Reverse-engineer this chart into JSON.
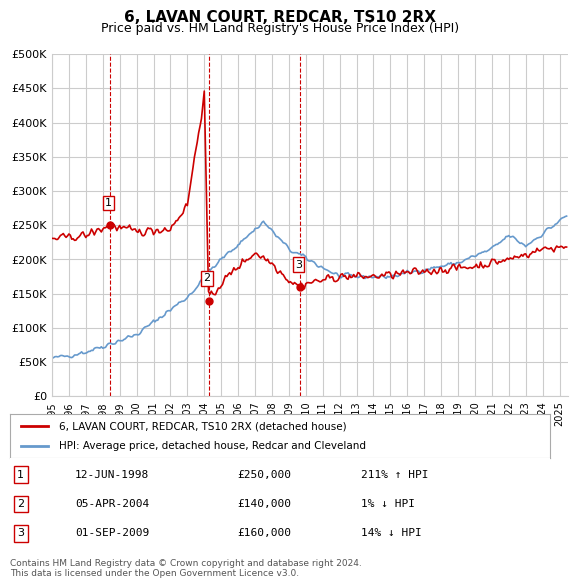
{
  "title": "6, LAVAN COURT, REDCAR, TS10 2RX",
  "subtitle": "Price paid vs. HM Land Registry's House Price Index (HPI)",
  "ylabel_ticks": [
    "£0",
    "£50K",
    "£100K",
    "£150K",
    "£200K",
    "£250K",
    "£300K",
    "£350K",
    "£400K",
    "£450K",
    "£500K"
  ],
  "ylim": [
    0,
    500000
  ],
  "xlim_start": 1995.0,
  "xlim_end": 2025.5,
  "hpi_color": "#6699cc",
  "price_color": "#cc0000",
  "sale_marker_color": "#cc0000",
  "sale_label_color": "#cc0000",
  "vline_color": "#cc0000",
  "bg_color": "#ffffff",
  "grid_color": "#cccccc",
  "legend_label_red": "6, LAVAN COURT, REDCAR, TS10 2RX (detached house)",
  "legend_label_blue": "HPI: Average price, detached house, Redcar and Cleveland",
  "sales": [
    {
      "num": 1,
      "date": "12-JUN-1998",
      "price": 250000,
      "hpi_rel": "211% ↑ HPI",
      "x": 1998.44
    },
    {
      "num": 2,
      "date": "05-APR-2004",
      "price": 140000,
      "hpi_rel": "1% ↓ HPI",
      "x": 2004.26
    },
    {
      "num": 3,
      "date": "01-SEP-2009",
      "price": 160000,
      "hpi_rel": "14% ↓ HPI",
      "x": 2009.67
    }
  ],
  "footnote": "Contains HM Land Registry data © Crown copyright and database right 2024.\nThis data is licensed under the Open Government Licence v3.0."
}
